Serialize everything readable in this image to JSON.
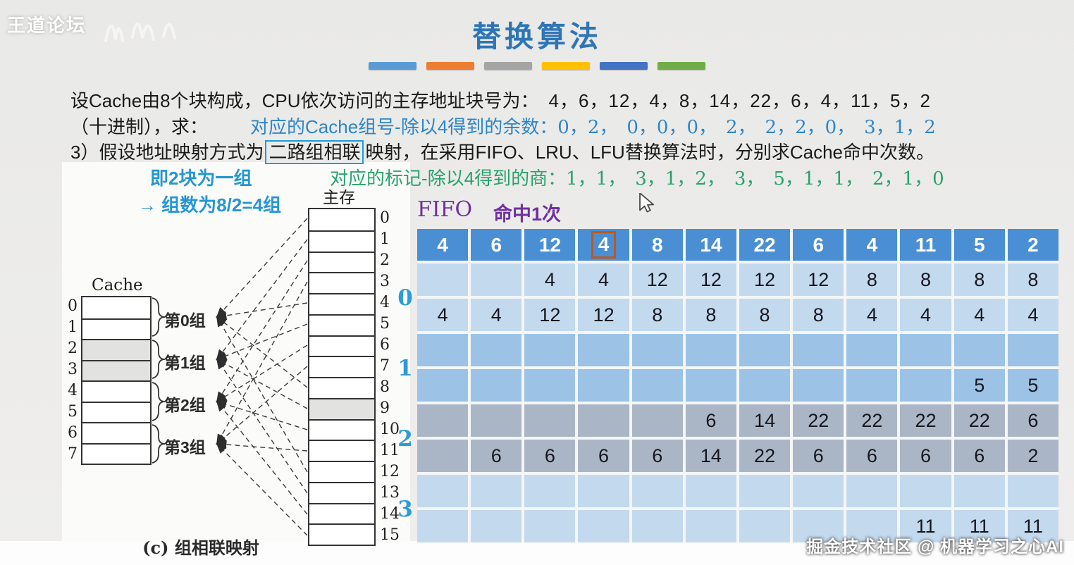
{
  "watermark_top": "王道论坛",
  "watermark_bottom": "掘金技术社区 @ 机器学习之心AI",
  "title": "替换算法",
  "accent_bars": [
    "#5B9BD5",
    "#ED7D31",
    "#A5A5A5",
    "#FFC000",
    "#4472C4",
    "#70AD47"
  ],
  "problem": {
    "line1_text": "设Cache由8个块构成，CPU依次访问的主存地址块号为：",
    "line1_numbers": "4，6，12，4，8，14，22，6，4，11，5，2",
    "line2_prefix": "（十进制），求：",
    "line2_blue_label": "对应的Cache组号-除以4得到的余数：",
    "line2_blue_numbers": "0，2，　0，0，0，　2，　2，2，0，　3，1，2",
    "line3_prefix": "3）假设地址映射方式为",
    "line3_boxed": "二路组相联",
    "line3_suffix": "映射，在采用FIFO、LRU、LFU替换算法时，分别求Cache命中次数。",
    "note_blue_1": "即2块为一组",
    "note_blue_2": "→ 组数为8/2=4组",
    "note_green_label": "对应的标记-除以4得到的商：",
    "note_green_numbers": "1，1，　3，1，2，　3，　5，1，1，　2，1，0"
  },
  "diagram": {
    "cache_label": "Cache",
    "memory_label": "主存",
    "caption": "(c) 组相联映射",
    "cache_rows": [
      "0",
      "1",
      "2",
      "3",
      "4",
      "5",
      "6",
      "7"
    ],
    "cache_shaded_rows": [
      2,
      3
    ],
    "memory_rows": [
      "0",
      "1",
      "2",
      "3",
      "4",
      "5",
      "6",
      "7",
      "8",
      "9",
      "10",
      "11",
      "12",
      "13",
      "14",
      "15"
    ],
    "memory_shaded_rows": [
      9
    ],
    "groups": [
      "第0组",
      "第1组",
      "第2组",
      "第3组"
    ]
  },
  "fifo": {
    "algo_label": "FIFO",
    "result_label": "命中1次",
    "set_labels": [
      "0",
      "1",
      "2",
      "3"
    ],
    "header": [
      "4",
      "6",
      "12",
      "4",
      "8",
      "14",
      "22",
      "6",
      "4",
      "11",
      "5",
      "2"
    ],
    "highlighted_header_col": 3,
    "rows": [
      {
        "tone": "light",
        "cells": [
          "",
          "",
          "4",
          "4",
          "12",
          "12",
          "12",
          "12",
          "8",
          "8",
          "8",
          "8"
        ]
      },
      {
        "tone": "light",
        "cells": [
          "4",
          "4",
          "12",
          "12",
          "8",
          "8",
          "8",
          "8",
          "4",
          "4",
          "4",
          "4"
        ]
      },
      {
        "tone": "mid",
        "cells": [
          "",
          "",
          "",
          "",
          "",
          "",
          "",
          "",
          "",
          "",
          "",
          ""
        ]
      },
      {
        "tone": "mid",
        "cells": [
          "",
          "",
          "",
          "",
          "",
          "",
          "",
          "",
          "",
          "",
          "5",
          "5"
        ]
      },
      {
        "tone": "gray",
        "cells": [
          "",
          "",
          "",
          "",
          "",
          "6",
          "14",
          "22",
          "22",
          "22",
          "22",
          "6"
        ]
      },
      {
        "tone": "gray",
        "cells": [
          "",
          "6",
          "6",
          "6",
          "6",
          "14",
          "22",
          "6",
          "6",
          "6",
          "6",
          "2"
        ]
      },
      {
        "tone": "light",
        "cells": [
          "",
          "",
          "",
          "",
          "",
          "",
          "",
          "",
          "",
          "",
          "",
          ""
        ]
      },
      {
        "tone": "light",
        "cells": [
          "",
          "",
          "",
          "",
          "",
          "",
          "",
          "",
          "",
          "11",
          "11",
          "11"
        ]
      }
    ]
  }
}
